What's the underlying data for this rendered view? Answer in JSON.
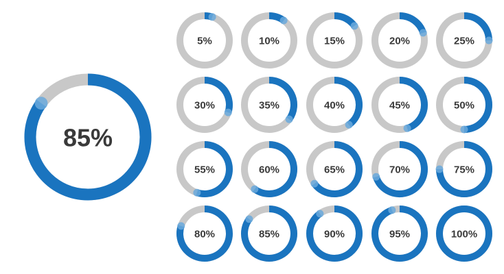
{
  "colors": {
    "track": "#c8c8c8",
    "progress": "#1a74bf",
    "cap": "#6aa9dc",
    "label": "#3a3a3a",
    "background": "#ffffff"
  },
  "featured": {
    "value": 85,
    "label": "85%"
  },
  "grid": [
    {
      "value": 5,
      "label": "5%"
    },
    {
      "value": 10,
      "label": "10%"
    },
    {
      "value": 15,
      "label": "15%"
    },
    {
      "value": 20,
      "label": "20%"
    },
    {
      "value": 25,
      "label": "25%"
    },
    {
      "value": 30,
      "label": "30%"
    },
    {
      "value": 35,
      "label": "35%"
    },
    {
      "value": 40,
      "label": "40%"
    },
    {
      "value": 45,
      "label": "45%"
    },
    {
      "value": 50,
      "label": "50%"
    },
    {
      "value": 55,
      "label": "55%"
    },
    {
      "value": 60,
      "label": "60%"
    },
    {
      "value": 65,
      "label": "65%"
    },
    {
      "value": 70,
      "label": "70%"
    },
    {
      "value": 75,
      "label": "75%"
    },
    {
      "value": 80,
      "label": "80%"
    },
    {
      "value": 85,
      "label": "85%"
    },
    {
      "value": 90,
      "label": "90%"
    },
    {
      "value": 95,
      "label": "95%"
    },
    {
      "value": 100,
      "label": "100%"
    }
  ]
}
